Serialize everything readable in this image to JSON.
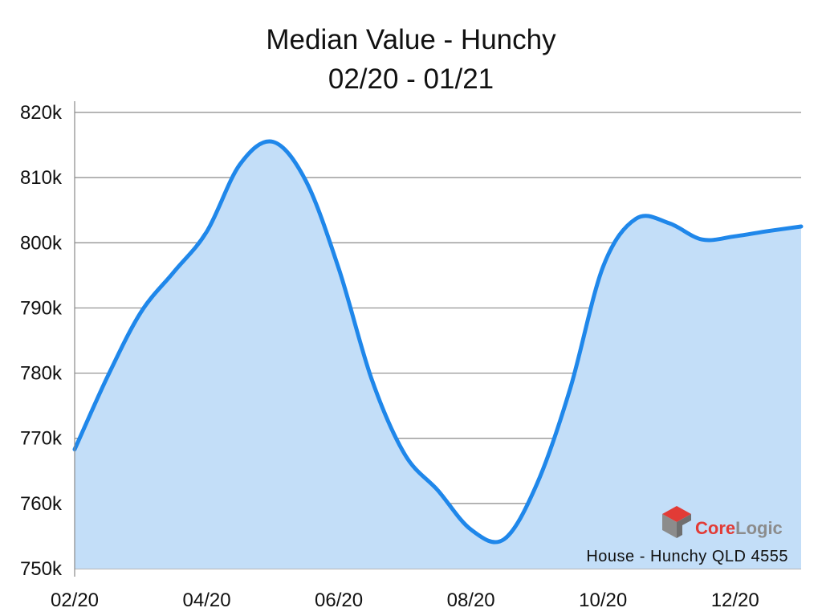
{
  "colors": {
    "line": "#1f87ea",
    "area": "#c3def8",
    "grid": "#8a8a8a",
    "axis": "#8a8a8a",
    "brand_red": "#e23b36",
    "brand_gray": "#8c8c8c"
  },
  "watermark": {
    "brand": "CoreLogic",
    "caption": "House - Hunchy QLD 4555"
  },
  "chart_data": {
    "type": "area",
    "title": "Median Value - Hunchy",
    "subtitle": "02/20 - 01/21",
    "xlabel": "",
    "ylabel": "",
    "x": [
      0,
      1,
      2,
      3,
      4,
      5,
      6,
      7,
      8,
      9,
      10,
      11,
      12,
      13,
      14,
      15,
      16,
      17,
      18,
      19,
      20,
      21,
      22
    ],
    "x_unit": "half-months from 02/20",
    "x_ticks": [
      {
        "x": 0,
        "label": "02/20"
      },
      {
        "x": 4,
        "label": "04/20"
      },
      {
        "x": 8,
        "label": "06/20"
      },
      {
        "x": 12,
        "label": "08/20"
      },
      {
        "x": 16,
        "label": "10/20"
      },
      {
        "x": 20,
        "label": "12/20"
      }
    ],
    "xlim": [
      0,
      22
    ],
    "series": [
      {
        "values": [
          768300,
          779500,
          789300,
          795500,
          801700,
          812000,
          815500,
          809500,
          796000,
          779000,
          767500,
          762000,
          756000,
          754500,
          763000,
          777500,
          796300,
          803700,
          803000,
          800500,
          801000,
          801800,
          802500
        ]
      }
    ],
    "y_ticks": [
      {
        "value": 750000,
        "label": "750k"
      },
      {
        "value": 760000,
        "label": "760k"
      },
      {
        "value": 770000,
        "label": "770k"
      },
      {
        "value": 780000,
        "label": "780k"
      },
      {
        "value": 790000,
        "label": "790k"
      },
      {
        "value": 800000,
        "label": "800k"
      },
      {
        "value": 810000,
        "label": "810k"
      },
      {
        "value": 820000,
        "label": "820k"
      }
    ],
    "ylim": [
      750000,
      820000
    ],
    "grid": true,
    "legend": "none"
  }
}
